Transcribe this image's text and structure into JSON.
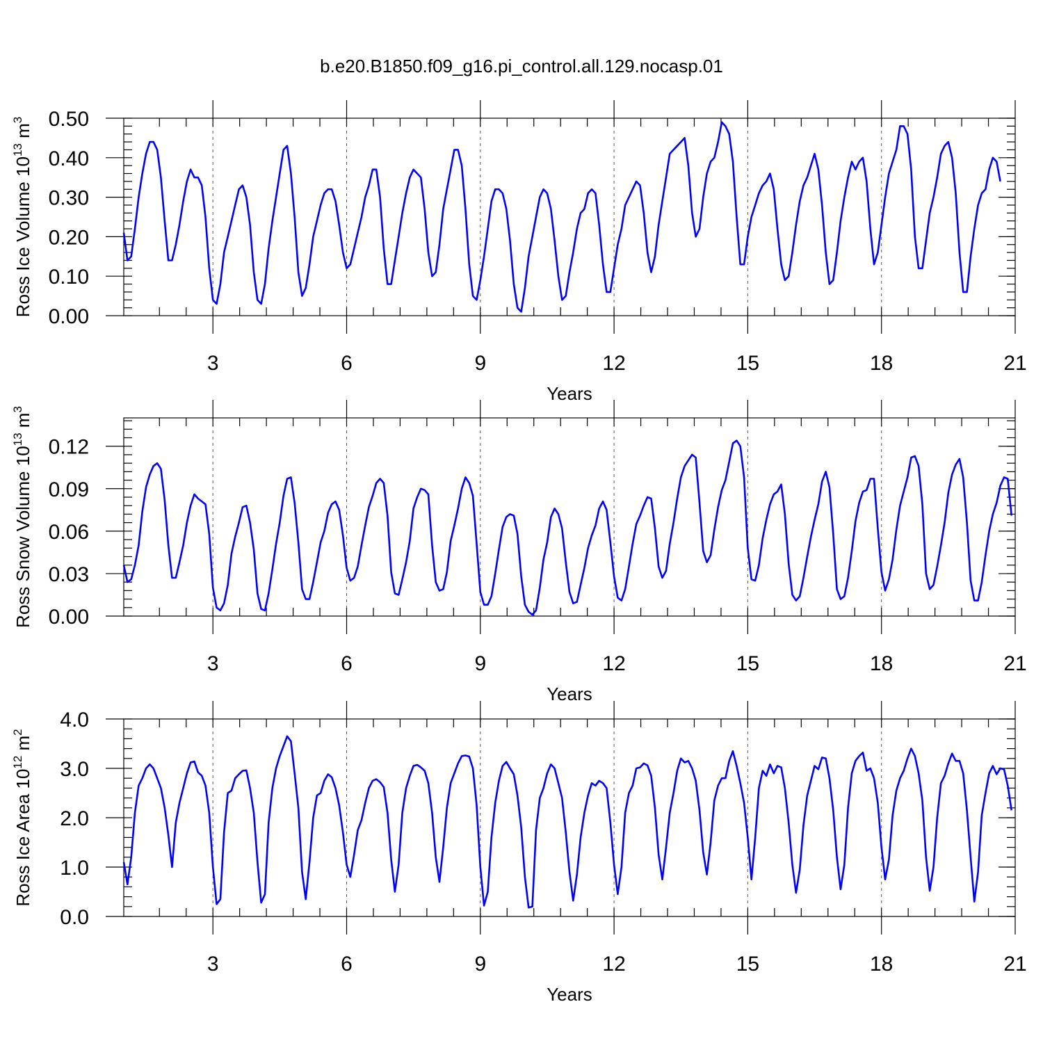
{
  "figure": {
    "title": "b.e20.B1850.f09_g16.pi_control.all.129.nocasp.01",
    "line_color": "#0000ff"
  },
  "chart_data": [
    {
      "type": "line",
      "ylabel_main": "Ross Ice Volume 10",
      "ylabel_exp": "13",
      "ylabel_unit": " m",
      "ylabel_unit_exp": "3",
      "xlabel": "Years",
      "xlim": [
        1,
        21
      ],
      "ylim": [
        0,
        0.5
      ],
      "xticks": [
        3,
        6,
        9,
        12,
        15,
        18,
        21
      ],
      "xtick_labels": [
        "3",
        "6",
        "9",
        "12",
        "15",
        "18",
        "21"
      ],
      "yticks": [
        0,
        0.1,
        0.2,
        0.3,
        0.4,
        0.5
      ],
      "ytick_labels": [
        "0.00",
        "0.10",
        "0.20",
        "0.30",
        "0.40",
        "0.50"
      ],
      "y_minor_step": 0.02,
      "x_minor_step": 0.6,
      "dashed_vlines": [
        3,
        6,
        9,
        12,
        15,
        18
      ],
      "x_start": 1.0,
      "x_step": 0.0833333,
      "values": [
        0.21,
        0.14,
        0.15,
        0.22,
        0.3,
        0.36,
        0.41,
        0.44,
        0.44,
        0.42,
        0.35,
        0.24,
        0.14,
        0.14,
        0.18,
        0.23,
        0.29,
        0.34,
        0.37,
        0.35,
        0.35,
        0.33,
        0.25,
        0.12,
        0.04,
        0.03,
        0.08,
        0.16,
        0.2,
        0.24,
        0.28,
        0.32,
        0.33,
        0.3,
        0.23,
        0.11,
        0.04,
        0.03,
        0.08,
        0.17,
        0.24,
        0.3,
        0.36,
        0.42,
        0.43,
        0.36,
        0.25,
        0.11,
        0.05,
        0.07,
        0.13,
        0.2,
        0.24,
        0.28,
        0.31,
        0.32,
        0.32,
        0.29,
        0.23,
        0.16,
        0.12,
        0.13,
        0.17,
        0.21,
        0.25,
        0.3,
        0.33,
        0.37,
        0.37,
        0.3,
        0.17,
        0.08,
        0.08,
        0.14,
        0.2,
        0.26,
        0.31,
        0.35,
        0.37,
        0.36,
        0.35,
        0.27,
        0.16,
        0.1,
        0.11,
        0.18,
        0.27,
        0.32,
        0.37,
        0.42,
        0.42,
        0.38,
        0.27,
        0.13,
        0.05,
        0.04,
        0.09,
        0.15,
        0.22,
        0.29,
        0.32,
        0.32,
        0.31,
        0.27,
        0.19,
        0.08,
        0.02,
        0.01,
        0.07,
        0.15,
        0.2,
        0.25,
        0.3,
        0.32,
        0.31,
        0.27,
        0.19,
        0.1,
        0.04,
        0.05,
        0.11,
        0.16,
        0.22,
        0.26,
        0.27,
        0.31,
        0.32,
        0.31,
        0.23,
        0.13,
        0.06,
        0.06,
        0.12,
        0.18,
        0.22,
        0.28,
        0.3,
        0.32,
        0.34,
        0.33,
        0.26,
        0.16,
        0.11,
        0.15,
        0.23,
        0.29,
        0.35,
        0.41,
        0.42,
        0.43,
        0.44,
        0.45,
        0.38,
        0.26,
        0.2,
        0.22,
        0.3,
        0.36,
        0.39,
        0.4,
        0.44,
        0.49,
        0.48,
        0.46,
        0.39,
        0.25,
        0.13,
        0.13,
        0.2,
        0.25,
        0.28,
        0.31,
        0.33,
        0.34,
        0.36,
        0.32,
        0.22,
        0.13,
        0.09,
        0.1,
        0.16,
        0.23,
        0.29,
        0.33,
        0.35,
        0.38,
        0.41,
        0.37,
        0.28,
        0.16,
        0.08,
        0.09,
        0.16,
        0.24,
        0.3,
        0.35,
        0.39,
        0.37,
        0.39,
        0.4,
        0.34,
        0.22,
        0.13,
        0.16,
        0.23,
        0.3,
        0.36,
        0.39,
        0.42,
        0.48,
        0.48,
        0.46,
        0.37,
        0.2,
        0.12,
        0.12,
        0.19,
        0.26,
        0.3,
        0.35,
        0.41,
        0.43,
        0.44,
        0.4,
        0.31,
        0.16,
        0.06,
        0.06,
        0.15,
        0.22,
        0.28,
        0.31,
        0.32,
        0.37,
        0.4,
        0.39,
        0.34
      ]
    },
    {
      "type": "line",
      "ylabel_main": "Ross Snow Volume 10",
      "ylabel_exp": "13",
      "ylabel_unit": " m",
      "ylabel_unit_exp": "3",
      "xlabel": "Years",
      "xlim": [
        1,
        21
      ],
      "ylim": [
        0,
        0.14
      ],
      "xticks": [
        3,
        6,
        9,
        12,
        15,
        18,
        21
      ],
      "xtick_labels": [
        "3",
        "6",
        "9",
        "12",
        "15",
        "18",
        "21"
      ],
      "yticks": [
        0,
        0.03,
        0.06,
        0.09,
        0.12
      ],
      "ytick_labels": [
        "0.00",
        "0.03",
        "0.06",
        "0.09",
        "0.12"
      ],
      "y_minor_step": 0.006,
      "x_minor_step": 0.6,
      "dashed_vlines": [
        3,
        6,
        9,
        12,
        15,
        18
      ],
      "x_start": 1.0,
      "x_step": 0.0833333,
      "values": [
        0.036,
        0.024,
        0.026,
        0.036,
        0.05,
        0.074,
        0.091,
        0.1,
        0.106,
        0.108,
        0.104,
        0.082,
        0.05,
        0.027,
        0.027,
        0.038,
        0.05,
        0.066,
        0.078,
        0.086,
        0.083,
        0.081,
        0.079,
        0.058,
        0.02,
        0.006,
        0.004,
        0.009,
        0.022,
        0.044,
        0.056,
        0.066,
        0.077,
        0.078,
        0.066,
        0.047,
        0.016,
        0.005,
        0.004,
        0.016,
        0.033,
        0.051,
        0.066,
        0.085,
        0.097,
        0.098,
        0.08,
        0.052,
        0.019,
        0.012,
        0.012,
        0.024,
        0.038,
        0.052,
        0.06,
        0.073,
        0.079,
        0.081,
        0.075,
        0.057,
        0.034,
        0.025,
        0.027,
        0.035,
        0.05,
        0.064,
        0.077,
        0.085,
        0.094,
        0.097,
        0.094,
        0.071,
        0.031,
        0.016,
        0.015,
        0.026,
        0.038,
        0.053,
        0.076,
        0.084,
        0.09,
        0.089,
        0.086,
        0.05,
        0.024,
        0.018,
        0.019,
        0.031,
        0.053,
        0.064,
        0.076,
        0.09,
        0.098,
        0.094,
        0.085,
        0.051,
        0.017,
        0.008,
        0.008,
        0.014,
        0.03,
        0.047,
        0.063,
        0.07,
        0.072,
        0.071,
        0.058,
        0.028,
        0.008,
        0.003,
        0.001,
        0.004,
        0.02,
        0.04,
        0.052,
        0.07,
        0.076,
        0.072,
        0.062,
        0.038,
        0.017,
        0.009,
        0.01,
        0.022,
        0.034,
        0.048,
        0.057,
        0.064,
        0.076,
        0.081,
        0.075,
        0.052,
        0.028,
        0.013,
        0.011,
        0.019,
        0.035,
        0.051,
        0.065,
        0.071,
        0.078,
        0.084,
        0.083,
        0.062,
        0.035,
        0.027,
        0.032,
        0.051,
        0.066,
        0.083,
        0.098,
        0.106,
        0.11,
        0.114,
        0.112,
        0.08,
        0.046,
        0.038,
        0.043,
        0.061,
        0.077,
        0.089,
        0.096,
        0.109,
        0.122,
        0.124,
        0.12,
        0.098,
        0.048,
        0.026,
        0.025,
        0.036,
        0.055,
        0.068,
        0.079,
        0.086,
        0.088,
        0.093,
        0.072,
        0.037,
        0.015,
        0.011,
        0.014,
        0.027,
        0.042,
        0.056,
        0.068,
        0.079,
        0.095,
        0.102,
        0.091,
        0.058,
        0.019,
        0.012,
        0.014,
        0.027,
        0.046,
        0.067,
        0.08,
        0.088,
        0.089,
        0.097,
        0.097,
        0.062,
        0.031,
        0.018,
        0.026,
        0.04,
        0.061,
        0.078,
        0.088,
        0.098,
        0.112,
        0.113,
        0.106,
        0.079,
        0.03,
        0.019,
        0.022,
        0.035,
        0.05,
        0.066,
        0.087,
        0.1,
        0.107,
        0.111,
        0.098,
        0.066,
        0.025,
        0.011,
        0.011,
        0.024,
        0.043,
        0.06,
        0.072,
        0.08,
        0.092,
        0.098,
        0.097,
        0.071
      ]
    },
    {
      "type": "line",
      "ylabel_main": "Ross Ice Area 10",
      "ylabel_exp": "12",
      "ylabel_unit": " m",
      "ylabel_unit_exp": "2",
      "xlabel": "Years",
      "xlim": [
        1,
        21
      ],
      "ylim": [
        0,
        4.0
      ],
      "xticks": [
        3,
        6,
        9,
        12,
        15,
        18,
        21
      ],
      "xtick_labels": [
        "3",
        "6",
        "9",
        "12",
        "15",
        "18",
        "21"
      ],
      "yticks": [
        0,
        1,
        2,
        3,
        4
      ],
      "ytick_labels": [
        "0.0",
        "1.0",
        "2.0",
        "3.0",
        "4.0"
      ],
      "y_minor_step": 0.2,
      "x_minor_step": 0.6,
      "dashed_vlines": [
        3,
        6,
        9,
        12,
        15,
        18
      ],
      "x_start": 1.0,
      "x_step": 0.0833333,
      "values": [
        1.1,
        0.65,
        1.2,
        2.1,
        2.65,
        2.8,
        3.0,
        3.08,
        3.0,
        2.8,
        2.6,
        2.2,
        1.65,
        1.0,
        1.9,
        2.3,
        2.6,
        2.9,
        3.12,
        3.14,
        2.92,
        2.85,
        2.65,
        2.1,
        1.0,
        0.25,
        0.35,
        1.7,
        2.5,
        2.55,
        2.8,
        2.88,
        2.95,
        2.96,
        2.6,
        2.1,
        1.1,
        0.28,
        0.45,
        1.9,
        2.6,
        3.0,
        3.25,
        3.45,
        3.65,
        3.55,
        2.9,
        2.2,
        0.9,
        0.35,
        1.1,
        2.0,
        2.45,
        2.5,
        2.75,
        2.88,
        2.82,
        2.6,
        2.25,
        1.7,
        1.05,
        0.8,
        1.25,
        1.75,
        1.95,
        2.3,
        2.6,
        2.75,
        2.78,
        2.72,
        2.62,
        2.1,
        1.15,
        0.5,
        1.05,
        2.1,
        2.6,
        2.85,
        3.05,
        3.07,
        3.02,
        2.95,
        2.7,
        2.1,
        1.2,
        0.7,
        1.4,
        2.2,
        2.7,
        2.9,
        3.1,
        3.25,
        3.26,
        3.24,
        3.0,
        2.25,
        1.0,
        0.22,
        0.5,
        1.6,
        2.3,
        2.75,
        3.05,
        3.13,
        3.0,
        2.88,
        2.45,
        1.8,
        0.8,
        0.18,
        0.2,
        1.75,
        2.4,
        2.6,
        2.9,
        3.08,
        3.0,
        2.7,
        2.4,
        1.7,
        0.9,
        0.32,
        0.85,
        1.6,
        2.1,
        2.45,
        2.7,
        2.65,
        2.75,
        2.7,
        2.6,
        1.9,
        1.05,
        0.45,
        1.0,
        2.1,
        2.5,
        2.65,
        3.0,
        3.02,
        3.1,
        3.06,
        2.85,
        2.2,
        1.25,
        0.75,
        1.4,
        2.1,
        2.5,
        2.95,
        3.2,
        3.12,
        3.15,
        3.0,
        2.75,
        2.15,
        1.3,
        0.85,
        1.5,
        2.35,
        2.65,
        2.8,
        2.8,
        3.15,
        3.35,
        3.05,
        2.7,
        2.3,
        1.6,
        0.75,
        1.6,
        2.6,
        2.95,
        2.85,
        3.08,
        2.9,
        3.05,
        3.02,
        2.6,
        1.9,
        1.05,
        0.48,
        0.95,
        1.85,
        2.45,
        2.75,
        3.05,
        2.98,
        3.22,
        3.2,
        2.8,
        2.15,
        1.2,
        0.55,
        1.05,
        2.2,
        2.9,
        3.15,
        3.25,
        3.32,
        2.95,
        3.0,
        2.8,
        2.3,
        1.4,
        0.75,
        1.15,
        2.05,
        2.55,
        2.8,
        2.95,
        3.2,
        3.4,
        3.25,
        2.9,
        2.35,
        1.2,
        0.52,
        1.0,
        2.0,
        2.7,
        2.85,
        3.1,
        3.3,
        3.15,
        3.15,
        2.9,
        2.15,
        1.2,
        0.3,
        0.9,
        2.05,
        2.5,
        2.9,
        3.05,
        2.88,
        3.0,
        2.98,
        2.65,
        2.15
      ]
    }
  ]
}
